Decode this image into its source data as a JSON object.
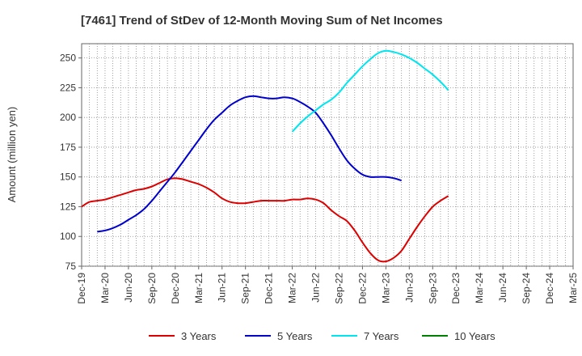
{
  "chart_data": {
    "type": "line",
    "title": "[7461]  Trend of StDev of 12-Month Moving Sum of Net Incomes",
    "ylabel": "Amount (million yen)",
    "xlabel": "",
    "x_ticks": [
      "Dec-19",
      "Mar-20",
      "Jun-20",
      "Sep-20",
      "Dec-20",
      "Mar-21",
      "Jun-21",
      "Sep-21",
      "Dec-21",
      "Mar-22",
      "Jun-22",
      "Sep-22",
      "Dec-22",
      "Mar-23",
      "Jun-23",
      "Sep-23",
      "Dec-23",
      "Mar-24",
      "Jun-24",
      "Sep-24",
      "Dec-24",
      "Mar-25"
    ],
    "y_ticks": [
      75,
      100,
      125,
      150,
      175,
      200,
      225,
      250
    ],
    "ylim": [
      75,
      262
    ],
    "grid": true,
    "legend_position": "bottom",
    "series": [
      {
        "name": "3 Years",
        "color": "#dd0000",
        "start_index": 0,
        "values": [
          125,
          129,
          130,
          131,
          133,
          135,
          137,
          139,
          140,
          142,
          145,
          148,
          149,
          148,
          146,
          144,
          141,
          137,
          132,
          129,
          128,
          128,
          129,
          130,
          130,
          130,
          130,
          131,
          131,
          132,
          131,
          128,
          122,
          117,
          113,
          105,
          95,
          86,
          80,
          79,
          82,
          88,
          98,
          108,
          117,
          125,
          130,
          134
        ]
      },
      {
        "name": "5 Years",
        "color": "#0000cc",
        "start_index": 2,
        "values": [
          104,
          105,
          107,
          110,
          114,
          118,
          123,
          130,
          138,
          146,
          154,
          163,
          172,
          181,
          190,
          198,
          204,
          210,
          214,
          217,
          218,
          217,
          216,
          216,
          217,
          216,
          213,
          209,
          204,
          195,
          185,
          174,
          164,
          157,
          152,
          150,
          150,
          150,
          149,
          147
        ]
      },
      {
        "name": "7 Years",
        "color": "#00e5ee",
        "start_index": 27,
        "values": [
          188,
          195,
          201,
          206,
          211,
          215,
          221,
          229,
          236,
          243,
          249,
          254,
          256,
          255,
          253,
          250,
          246,
          241,
          236,
          230,
          223
        ]
      },
      {
        "name": "10 Years",
        "color": "#008000",
        "start_index": 0,
        "values": []
      }
    ]
  }
}
